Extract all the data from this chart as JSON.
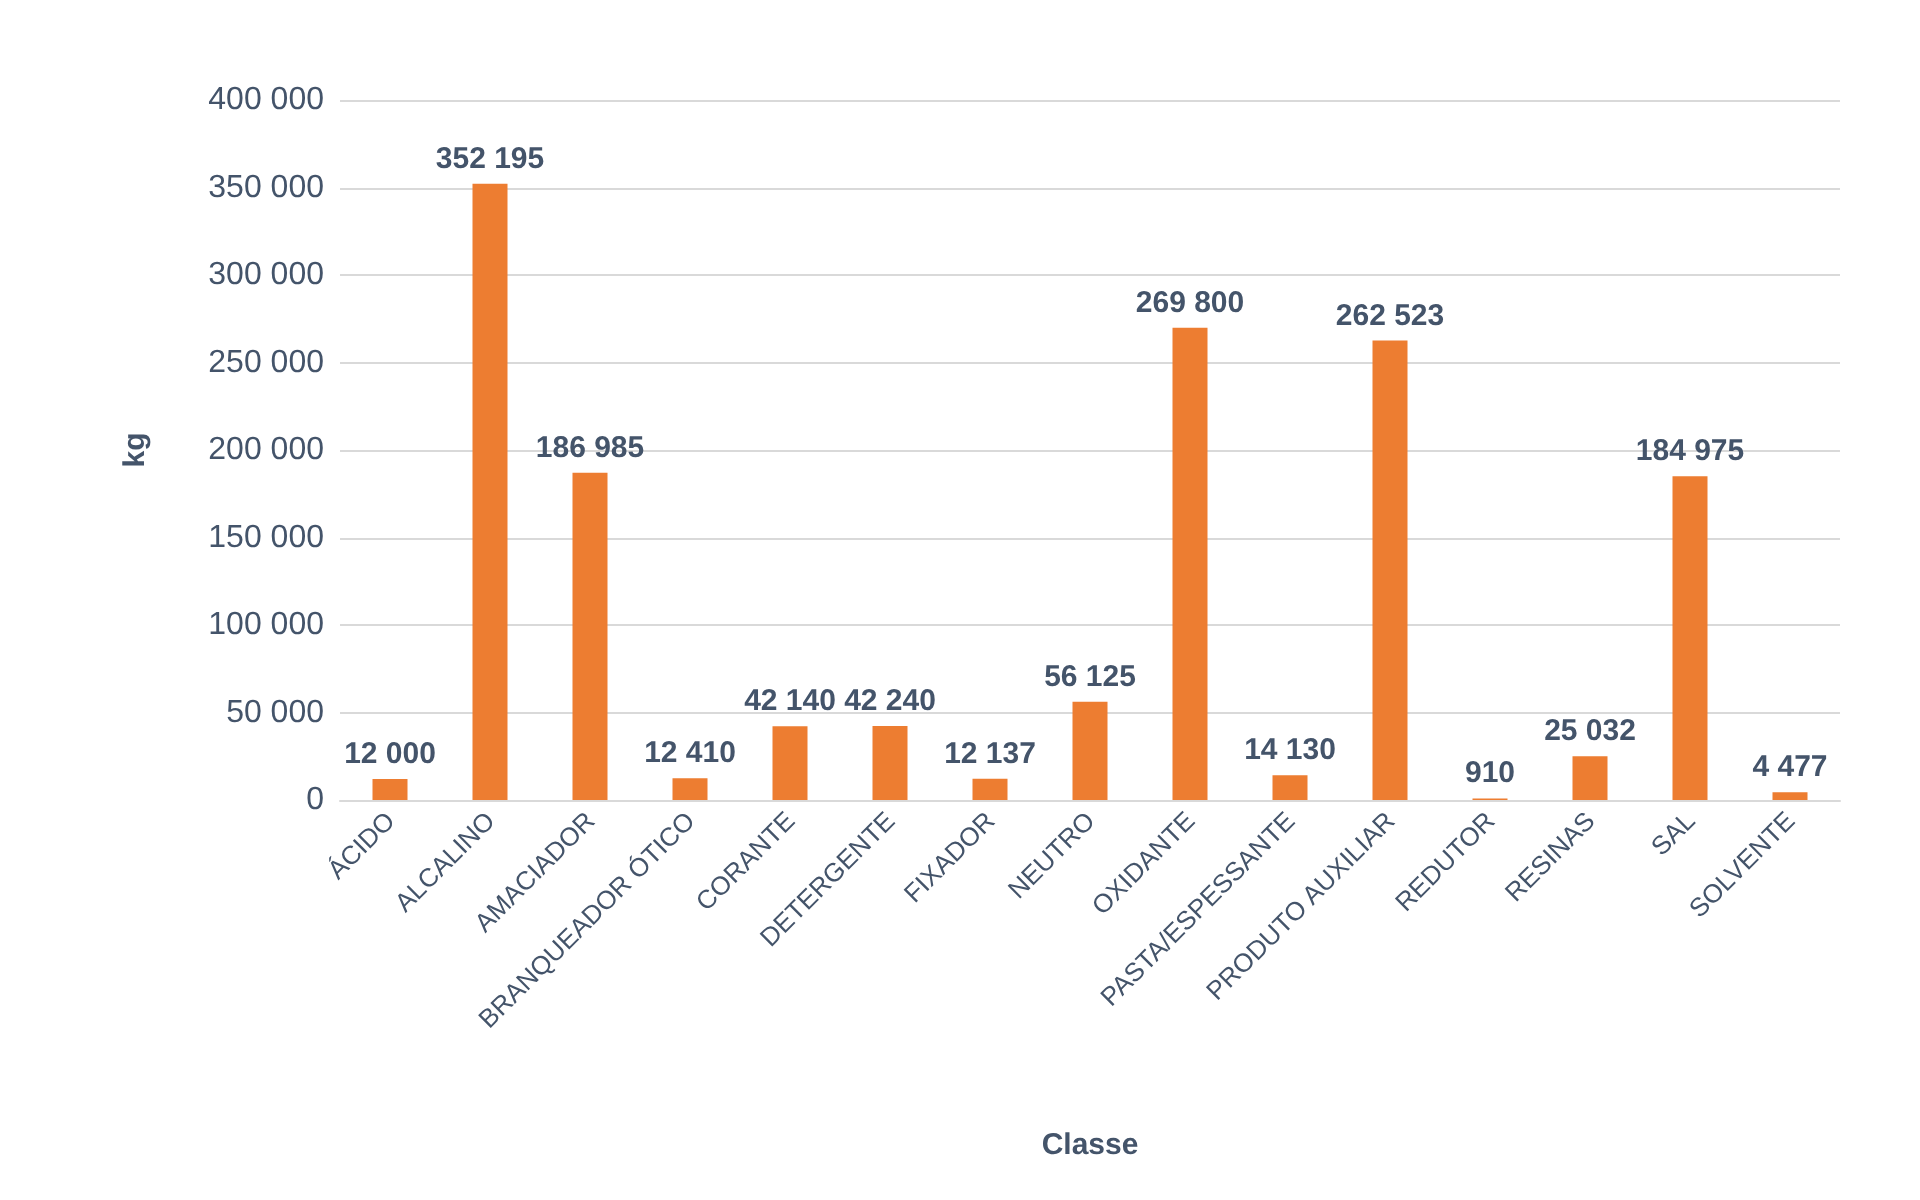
{
  "chart_data": {
    "type": "bar",
    "xlabel": "Classe",
    "ylabel": "kg",
    "categories": [
      "ÁCIDO",
      "ALCALINO",
      "AMACIADOR",
      "BRANQUEADOR ÓTICO",
      "CORANTE",
      "DETERGENTE",
      "FIXADOR",
      "NEUTRO",
      "OXIDANTE",
      "PASTA/ESPESSANTE",
      "PRODUTO AUXILIAR",
      "REDUTOR",
      "RESINAS",
      "SAL",
      "SOLVENTE"
    ],
    "values": [
      12000,
      352195,
      186985,
      12410,
      42140,
      42240,
      12137,
      56125,
      269800,
      14130,
      262523,
      910,
      25032,
      184975,
      4477
    ],
    "value_labels": [
      "12 000",
      "352 195",
      "186 985",
      "12 410",
      "42 140",
      "42 240",
      "12 137",
      "56 125",
      "269 800",
      "14 130",
      "262 523",
      "910",
      "25 032",
      "184 975",
      "4 477"
    ],
    "color": "#ed7d31",
    "ylim": [
      0,
      400000
    ],
    "yticks": [
      {
        "value": 0,
        "label": "0"
      },
      {
        "value": 50000,
        "label": "50 000"
      },
      {
        "value": 100000,
        "label": "100 000"
      },
      {
        "value": 150000,
        "label": "150 000"
      },
      {
        "value": 200000,
        "label": "200 000"
      },
      {
        "value": 250000,
        "label": "250 000"
      },
      {
        "value": 300000,
        "label": "300 000"
      },
      {
        "value": 350000,
        "label": "350 000"
      },
      {
        "value": 400000,
        "label": "400 000"
      }
    ],
    "grid": "y"
  }
}
